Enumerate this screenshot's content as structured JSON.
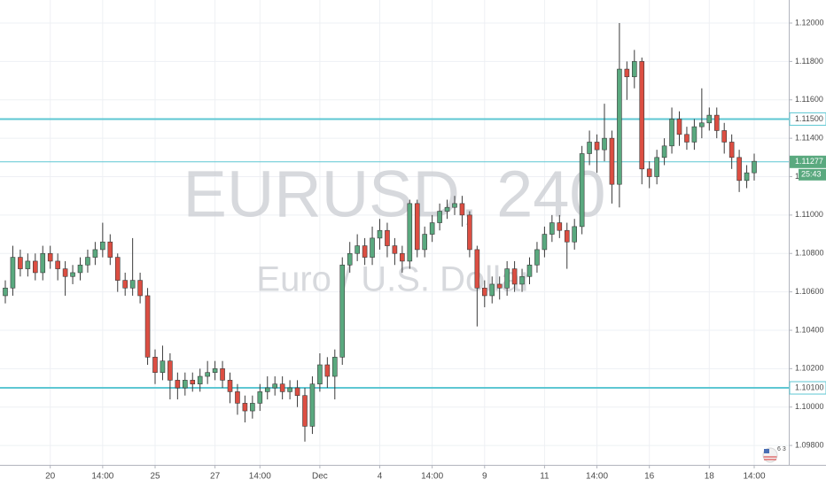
{
  "chart_data": {
    "type": "candlestick",
    "title": "EURUSD, 240",
    "subtitle": "Euro / U.S. Dollar",
    "categories": [
      null,
      null,
      null,
      null,
      null,
      null,
      "20",
      null,
      null,
      null,
      null,
      null,
      null,
      "14:00",
      null,
      null,
      null,
      null,
      null,
      null,
      "25",
      null,
      null,
      null,
      null,
      null,
      null,
      null,
      "27",
      null,
      null,
      null,
      null,
      null,
      "14:00",
      null,
      null,
      null,
      null,
      null,
      null,
      null,
      "Dec",
      null,
      null,
      null,
      null,
      null,
      null,
      null,
      "4",
      null,
      null,
      null,
      null,
      null,
      null,
      "14:00",
      null,
      null,
      null,
      null,
      null,
      null,
      "9",
      null,
      null,
      null,
      null,
      null,
      null,
      null,
      "11",
      null,
      null,
      null,
      null,
      null,
      null,
      "14:00",
      null,
      null,
      null,
      null,
      null,
      null,
      "16",
      null,
      null,
      null,
      null,
      null,
      null,
      null,
      "18",
      null,
      null,
      null,
      null,
      null,
      "14:00"
    ],
    "open": [
      1.1058,
      1.1062,
      1.1078,
      1.1072,
      1.1076,
      1.107,
      1.108,
      1.1076,
      1.1072,
      1.1068,
      1.107,
      1.1074,
      1.1078,
      1.1082,
      1.1086,
      1.1078,
      1.1066,
      1.1062,
      1.1066,
      1.1058,
      1.1026,
      1.1018,
      1.1024,
      1.1014,
      1.101,
      1.1014,
      1.1012,
      1.1016,
      1.1018,
      1.102,
      1.1014,
      1.1008,
      1.1002,
      1.0998,
      1.1002,
      1.1008,
      1.101,
      1.1012,
      1.1008,
      1.101,
      1.1006,
      1.099,
      1.1012,
      1.1022,
      1.1016,
      1.1026,
      1.1074,
      1.108,
      1.1084,
      1.1078,
      1.1088,
      1.1092,
      1.1084,
      1.108,
      1.1076,
      1.1106,
      1.1082,
      1.109,
      1.1096,
      1.1102,
      1.1104,
      1.1106,
      1.11,
      1.1082,
      1.1062,
      1.1058,
      1.1064,
      1.1062,
      1.1072,
      1.1064,
      1.1068,
      1.1074,
      1.1082,
      1.109,
      1.1096,
      1.1092,
      1.1086,
      1.1094,
      1.1132,
      1.1138,
      1.1134,
      1.114,
      1.1116,
      1.1176,
      1.1172,
      1.118,
      1.1124,
      1.112,
      1.113,
      1.1136,
      1.115,
      1.1142,
      1.1138,
      1.1146,
      1.1148,
      1.1152,
      1.1144,
      1.1138,
      1.113,
      1.1118,
      1.1122
    ],
    "high": [
      1.1066,
      1.1084,
      1.1082,
      1.108,
      1.108,
      1.1084,
      1.1084,
      1.108,
      1.1076,
      1.1074,
      1.1078,
      1.1082,
      1.1086,
      1.1096,
      1.109,
      1.108,
      1.107,
      1.1088,
      1.107,
      1.1062,
      1.103,
      1.1032,
      1.1028,
      1.1018,
      1.1018,
      1.1018,
      1.102,
      1.1024,
      1.1024,
      1.1024,
      1.1018,
      1.1012,
      1.1006,
      1.1006,
      1.1012,
      1.1016,
      1.1016,
      1.1016,
      1.1014,
      1.1014,
      1.101,
      1.1016,
      1.1028,
      1.1026,
      1.103,
      1.1078,
      1.1086,
      1.109,
      1.1088,
      1.1094,
      1.1098,
      1.1096,
      1.1088,
      1.1084,
      1.1108,
      1.1108,
      1.1094,
      1.11,
      1.1106,
      1.1108,
      1.111,
      1.111,
      1.1102,
      1.1084,
      1.1066,
      1.1068,
      1.1068,
      1.1076,
      1.1076,
      1.1072,
      1.1078,
      1.1086,
      1.1094,
      1.11,
      1.11,
      1.1096,
      1.1098,
      1.1136,
      1.1144,
      1.1142,
      1.1158,
      1.1144,
      1.12,
      1.118,
      1.1186,
      1.1182,
      1.1128,
      1.1134,
      1.114,
      1.1156,
      1.1154,
      1.1146,
      1.115,
      1.1166,
      1.1156,
      1.1156,
      1.1148,
      1.1142,
      1.1134,
      1.1126,
      1.1132
    ],
    "low": [
      1.1054,
      1.1058,
      1.1068,
      1.1068,
      1.1066,
      1.1066,
      1.1072,
      1.1066,
      1.1058,
      1.1064,
      1.1066,
      1.107,
      1.1074,
      1.1078,
      1.1074,
      1.106,
      1.1058,
      1.1058,
      1.1054,
      1.1022,
      1.1012,
      1.1014,
      1.1004,
      1.1004,
      1.1006,
      1.1008,
      1.1008,
      1.1012,
      1.1014,
      1.101,
      1.1002,
      1.0996,
      1.0992,
      1.0994,
      1.0998,
      1.1004,
      1.1006,
      1.1004,
      1.1004,
      1.1,
      1.0982,
      1.0986,
      1.1008,
      1.101,
      1.1004,
      1.1022,
      1.107,
      1.1076,
      1.1074,
      1.1074,
      1.1082,
      1.1078,
      1.1074,
      1.107,
      1.1072,
      1.1078,
      1.1078,
      1.1086,
      1.1092,
      1.1098,
      1.11,
      1.1094,
      1.1078,
      1.1042,
      1.1052,
      1.1054,
      1.1056,
      1.1058,
      1.106,
      1.106,
      1.1064,
      1.107,
      1.1078,
      1.1086,
      1.1088,
      1.1072,
      1.1082,
      1.109,
      1.1126,
      1.1122,
      1.1128,
      1.1106,
      1.1104,
      1.116,
      1.1166,
      1.1116,
      1.1114,
      1.1116,
      1.1126,
      1.1132,
      1.1136,
      1.1134,
      1.1134,
      1.114,
      1.1144,
      1.114,
      1.1132,
      1.1124,
      1.1112,
      1.1114,
      1.1118
    ],
    "close": [
      1.1062,
      1.1078,
      1.1072,
      1.1076,
      1.107,
      1.108,
      1.1076,
      1.1072,
      1.1068,
      1.107,
      1.1074,
      1.1078,
      1.1082,
      1.1086,
      1.1078,
      1.1066,
      1.1062,
      1.1066,
      1.1058,
      1.1026,
      1.1018,
      1.1024,
      1.1014,
      1.101,
      1.1014,
      1.1012,
      1.1016,
      1.1018,
      1.102,
      1.1014,
      1.1008,
      1.1002,
      1.0998,
      1.1002,
      1.1008,
      1.101,
      1.1012,
      1.1008,
      1.101,
      1.1006,
      1.099,
      1.1012,
      1.1022,
      1.1016,
      1.1026,
      1.1074,
      1.108,
      1.1084,
      1.1078,
      1.1088,
      1.1092,
      1.1084,
      1.108,
      1.1076,
      1.1106,
      1.1082,
      1.109,
      1.1096,
      1.1102,
      1.1104,
      1.1106,
      1.11,
      1.1082,
      1.1062,
      1.1058,
      1.1064,
      1.1062,
      1.1072,
      1.1064,
      1.1068,
      1.1074,
      1.1082,
      1.109,
      1.1096,
      1.1092,
      1.1086,
      1.1094,
      1.1132,
      1.1138,
      1.1134,
      1.114,
      1.1116,
      1.1176,
      1.1172,
      1.118,
      1.1124,
      1.112,
      1.113,
      1.1136,
      1.115,
      1.1142,
      1.1138,
      1.1146,
      1.1148,
      1.1152,
      1.1144,
      1.1138,
      1.113,
      1.1118,
      1.1122,
      1.1128
    ],
    "up_color": "#5aa97f",
    "down_color": "#dc4e42",
    "wick_color": "#3a3a3a",
    "ylim": [
      1.09699,
      1.1212
    ],
    "yticks": [
      {
        "value": 1.098,
        "label": "1.09800"
      },
      {
        "value": 1.1,
        "label": "1.10000"
      },
      {
        "value": 1.102,
        "label": "1.10200"
      },
      {
        "value": 1.104,
        "label": "1.10400"
      },
      {
        "value": 1.106,
        "label": "1.10600"
      },
      {
        "value": 1.108,
        "label": "1.10800"
      },
      {
        "value": 1.11,
        "label": "1.11000"
      },
      {
        "value": 1.112,
        "label": "1.11200"
      },
      {
        "value": 1.114,
        "label": "1.11400"
      },
      {
        "value": 1.116,
        "label": "1.11600"
      },
      {
        "value": 1.118,
        "label": "1.11800"
      },
      {
        "value": 1.12,
        "label": "1.12000"
      }
    ],
    "grid": true,
    "levels": [
      {
        "value": 1.115,
        "label": "1.11500",
        "color": "#5ec7d3"
      },
      {
        "value": 1.101,
        "label": "1.10100",
        "color": "#5ec7d3"
      }
    ],
    "last_price": {
      "value": 1.11277,
      "label": "1.11277",
      "color": "#5aa97f"
    },
    "countdown": "25:43",
    "badge": "6 3"
  }
}
